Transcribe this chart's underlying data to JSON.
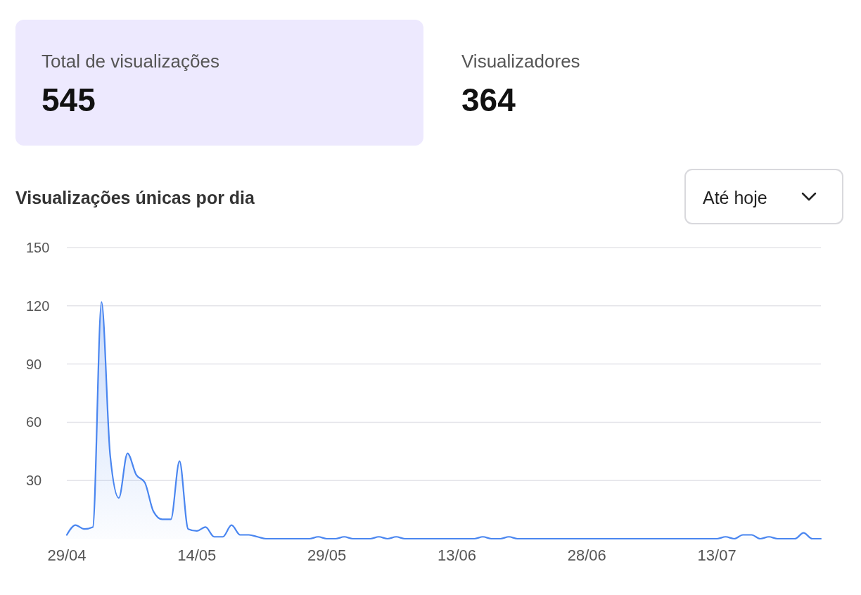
{
  "chart_data": [
    {
      "type": "other",
      "title": "Total de visualizações",
      "annotations": [
        "545"
      ]
    },
    {
      "type": "other",
      "title": "Visualizadores",
      "annotations": [
        "364"
      ]
    },
    {
      "type": "area",
      "title": "Visualizações únicas por dia",
      "annotations": [
        "Até hoje"
      ],
      "x": [
        "--04-29",
        "--04-30",
        "--05-01",
        "--05-02",
        "--05-03",
        "--05-04",
        "--05-05",
        "--05-06",
        "--05-07",
        "--05-08",
        "--05-09",
        "--05-10",
        "--05-11",
        "--05-12",
        "--05-13",
        "--05-14",
        "--05-15",
        "--05-16",
        "--05-17",
        "--05-18",
        "--05-19",
        "--05-20",
        "--05-21",
        "--05-22",
        "--05-23",
        "--05-24",
        "--05-25",
        "--05-26",
        "--05-27",
        "--05-28",
        "--05-29",
        "--05-30",
        "--05-31",
        "--06-01",
        "--06-02",
        "--06-03",
        "--06-04",
        "--06-05",
        "--06-06",
        "--06-07",
        "--06-08",
        "--06-09",
        "--06-10",
        "--06-11",
        "--06-12",
        "--06-13",
        "--06-14",
        "--06-15",
        "--06-16",
        "--06-17",
        "--06-18",
        "--06-19",
        "--06-20",
        "--06-21",
        "--06-22",
        "--06-23",
        "--06-24",
        "--06-25",
        "--06-26",
        "--06-27",
        "--06-28",
        "--06-29",
        "--06-30",
        "--07-01",
        "--07-02",
        "--07-03",
        "--07-04",
        "--07-05",
        "--07-06",
        "--07-07",
        "--07-08",
        "--07-09",
        "--07-10",
        "--07-11",
        "--07-12",
        "--07-13",
        "--07-14",
        "--07-15",
        "--07-16",
        "--07-17",
        "--07-18",
        "--07-19",
        "--07-20",
        "--07-21",
        "--07-22",
        "--07-23",
        "--07-24",
        "--07-25"
      ],
      "series": [
        {
          "color": "#4a86f0",
          "values": [
            2,
            7,
            5,
            6,
            122,
            43,
            21,
            44,
            33,
            29,
            14,
            10,
            10,
            40,
            5,
            4,
            6,
            1,
            1,
            7,
            2,
            2,
            1,
            0,
            0,
            0,
            0,
            0,
            0,
            1,
            0,
            0,
            1,
            0,
            0,
            0,
            1,
            0,
            1,
            0,
            0,
            0,
            0,
            0,
            0,
            0,
            0,
            0,
            1,
            0,
            0,
            1,
            0,
            0,
            0,
            0,
            0,
            0,
            0,
            0,
            0,
            0,
            0,
            0,
            0,
            0,
            0,
            0,
            0,
            0,
            0,
            0,
            0,
            0,
            0,
            0,
            1,
            0,
            2,
            2,
            0,
            1,
            0,
            0,
            0,
            3,
            0,
            0
          ]
        }
      ],
      "xlim": [
        "--04-29",
        "--07-25"
      ],
      "xticks": [
        {
          "value": "--04-29",
          "label": "29/04"
        },
        {
          "value": "--05-14",
          "label": "14/05"
        },
        {
          "value": "--05-29",
          "label": "29/05"
        },
        {
          "value": "--06-13",
          "label": "13/06"
        },
        {
          "value": "--06-28",
          "label": "28/06"
        },
        {
          "value": "--07-13",
          "label": "13/07"
        }
      ],
      "ylim": [
        0,
        150
      ],
      "yticks": [
        30,
        60,
        90,
        120,
        150
      ],
      "grid": "y",
      "marker": "none",
      "line_style": "solid"
    }
  ]
}
